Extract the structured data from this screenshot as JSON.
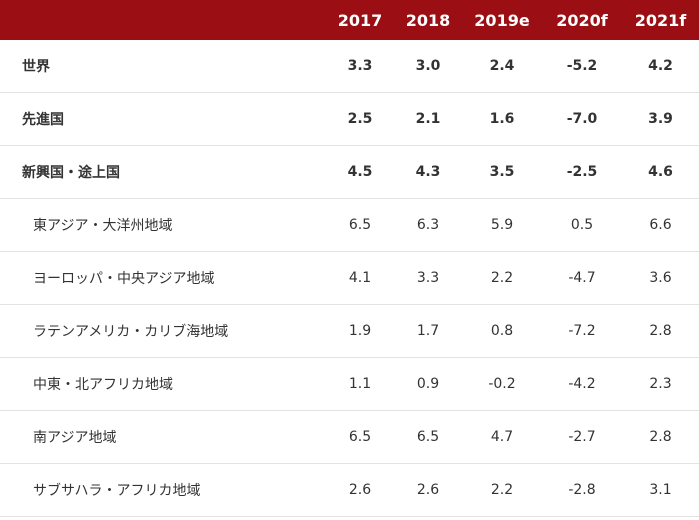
{
  "table": {
    "columns": [
      "2017",
      "2018",
      "2019e",
      "2020f",
      "2021f"
    ],
    "rows": [
      {
        "label": "世界",
        "values": [
          "3.3",
          "3.0",
          "2.4",
          "-5.2",
          "4.2"
        ]
      },
      {
        "label": "先進国",
        "values": [
          "2.5",
          "2.1",
          "1.6",
          "-7.0",
          "3.9"
        ]
      },
      {
        "label": "新興国・途上国",
        "values": [
          "4.5",
          "4.3",
          "3.5",
          "-2.5",
          "4.6"
        ]
      },
      {
        "label": "東アジア・大洋州地域",
        "values": [
          "6.5",
          "6.3",
          "5.9",
          "0.5",
          "6.6"
        ]
      },
      {
        "label": "ヨーロッパ・中央アジア地域",
        "values": [
          "4.1",
          "3.3",
          "2.2",
          "-4.7",
          "3.6"
        ]
      },
      {
        "label": "ラテンアメリカ・カリブ海地域",
        "values": [
          "1.9",
          "1.7",
          "0.8",
          "-7.2",
          "2.8"
        ]
      },
      {
        "label": "中東・北アフリカ地域",
        "values": [
          "1.1",
          "0.9",
          "-0.2",
          "-4.2",
          "2.3"
        ]
      },
      {
        "label": "南アジア地域",
        "values": [
          "6.5",
          "6.5",
          "4.7",
          "-2.7",
          "2.8"
        ]
      },
      {
        "label": "サブサハラ・アフリカ地域",
        "values": [
          "2.6",
          "2.6",
          "2.2",
          "-2.8",
          "3.1"
        ]
      }
    ]
  }
}
